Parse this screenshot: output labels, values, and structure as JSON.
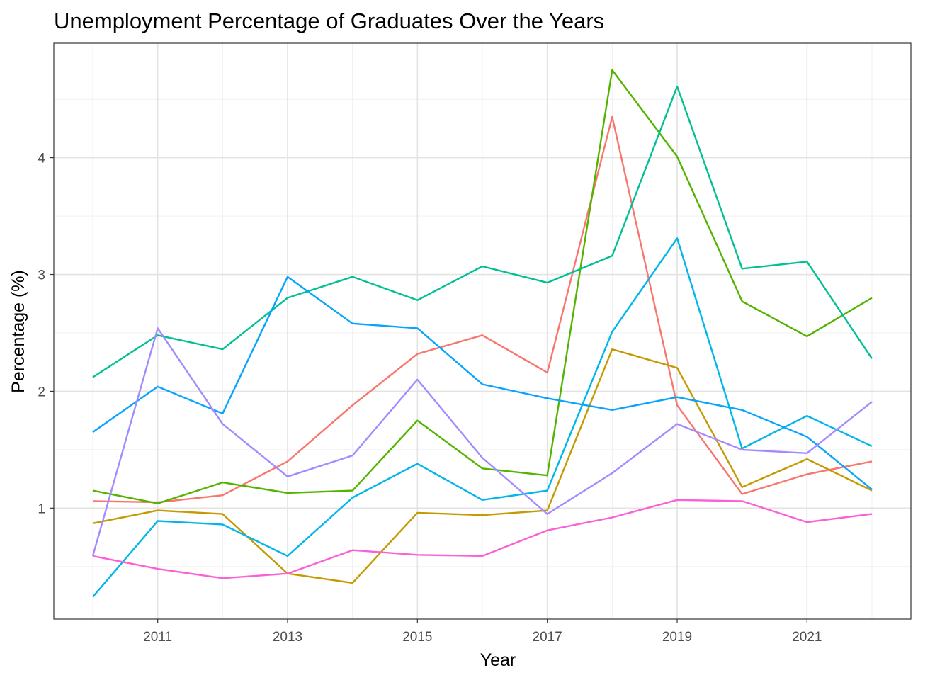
{
  "chart_data": {
    "type": "line",
    "title": "Unemployment Percentage of Graduates Over the Years",
    "xlabel": "Year",
    "ylabel": "Percentage (%)",
    "x": [
      2010,
      2011,
      2012,
      2013,
      2014,
      2015,
      2016,
      2017,
      2018,
      2019,
      2020,
      2021,
      2022
    ],
    "xlim": [
      2009.4,
      2022.6
    ],
    "ylim": [
      0.05,
      4.98
    ],
    "x_ticks": [
      2011,
      2013,
      2015,
      2017,
      2019,
      2021
    ],
    "y_ticks": [
      1,
      2,
      3,
      4
    ],
    "grid": true,
    "legend": "none",
    "series": [
      {
        "color": "#F8766D",
        "values": [
          1.06,
          1.05,
          1.11,
          1.4,
          1.88,
          2.32,
          2.48,
          2.16,
          4.35,
          1.88,
          1.12,
          1.29,
          1.4
        ]
      },
      {
        "color": "#C49A00",
        "values": [
          0.87,
          0.98,
          0.95,
          0.44,
          0.36,
          0.96,
          0.94,
          0.98,
          2.36,
          2.2,
          1.18,
          1.42,
          1.15
        ]
      },
      {
        "color": "#53B400",
        "values": [
          1.15,
          1.04,
          1.22,
          1.13,
          1.15,
          1.75,
          1.34,
          1.28,
          4.75,
          4.01,
          2.77,
          2.47,
          2.8
        ]
      },
      {
        "color": "#00C094",
        "values": [
          2.12,
          2.48,
          2.36,
          2.8,
          2.98,
          2.78,
          3.07,
          2.93,
          3.16,
          4.61,
          3.05,
          3.11,
          2.28
        ]
      },
      {
        "color": "#00B6EB",
        "values": [
          0.24,
          0.89,
          0.86,
          0.59,
          1.09,
          1.38,
          1.07,
          1.15,
          2.51,
          3.31,
          1.51,
          1.79,
          1.53
        ]
      },
      {
        "color": "#06A4FF",
        "values": [
          1.65,
          2.04,
          1.81,
          2.98,
          2.58,
          2.54,
          2.06,
          1.94,
          1.84,
          1.95,
          1.84,
          1.61,
          1.16
        ]
      },
      {
        "color": "#A58AFF",
        "values": [
          0.59,
          2.54,
          1.72,
          1.27,
          1.45,
          2.1,
          1.43,
          0.95,
          1.3,
          1.72,
          1.5,
          1.47,
          1.91
        ]
      },
      {
        "color": "#FB61D7",
        "values": [
          0.59,
          0.48,
          0.4,
          0.44,
          0.64,
          0.6,
          0.59,
          0.81,
          0.92,
          1.07,
          1.06,
          0.88,
          0.95
        ]
      }
    ]
  }
}
